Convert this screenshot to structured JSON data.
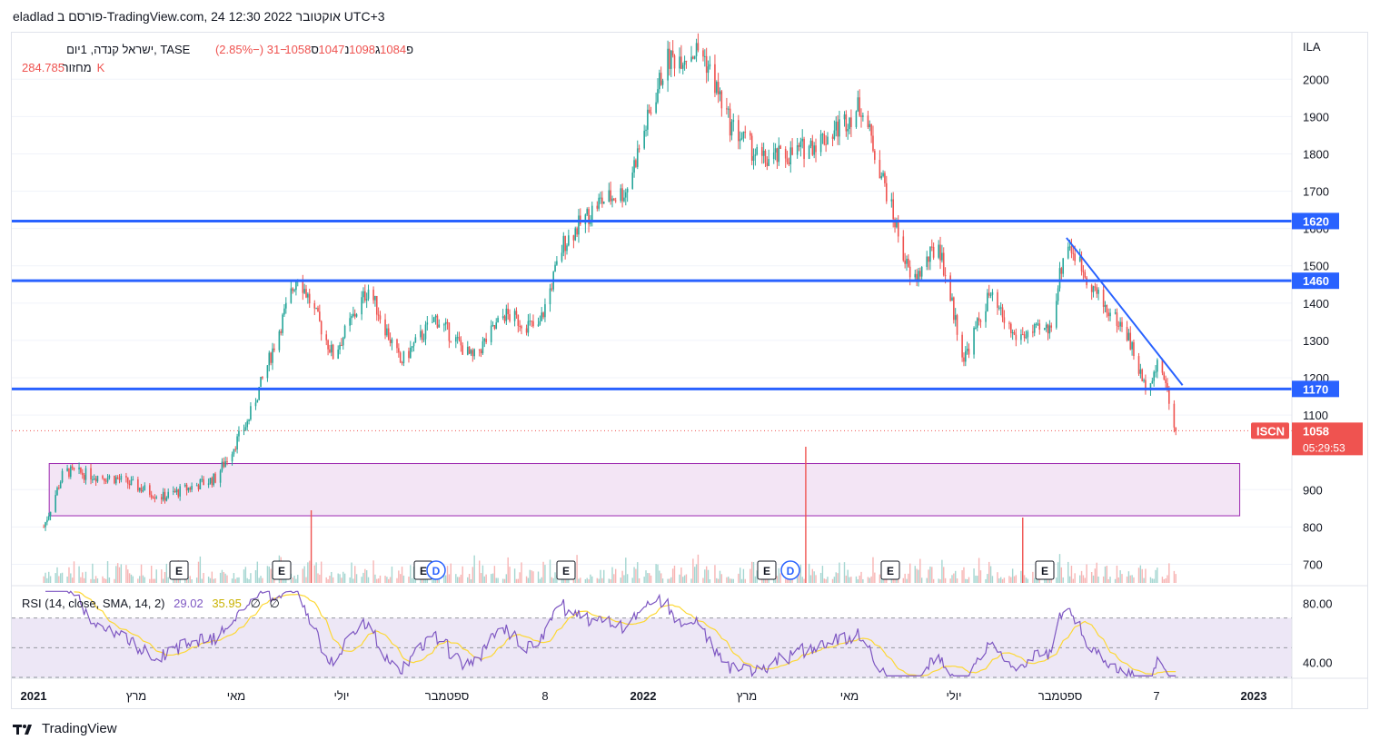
{
  "header": {
    "topline": "eladlad פורסם ב-TradingView.com, 24 אוקטובר 2022 12:30 UTC+3",
    "legend_symbol": "ישראל קנדה, 1יום, TASE",
    "ohlc": [
      {
        "label": "פ",
        "value": "1084"
      },
      {
        "label": "ג",
        "value": "1098"
      },
      {
        "label": "נ",
        "value": "1047"
      },
      {
        "label": "ס",
        "value": "1058"
      }
    ],
    "change": "−31 (−2.85%)",
    "volume_label": "מחזור",
    "volume_value": "284.785K"
  },
  "price_axis": {
    "currency": "ILA",
    "ticks": [
      "2000",
      "1900",
      "1800",
      "1700",
      "1600",
      "1500",
      "1400",
      "1300",
      "1200",
      "1100",
      "900",
      "800",
      "700"
    ]
  },
  "levels": [
    {
      "label": "1620",
      "value": 1620
    },
    {
      "label": "1460",
      "value": 1460
    },
    {
      "label": "1170",
      "value": 1170
    }
  ],
  "last_price": {
    "symbol": "ISCN",
    "value": "1058",
    "countdown": "05:29:53"
  },
  "rsi": {
    "legend": "RSI (14, close, SMA, 14, 2)",
    "value1": "29.02",
    "value2": "35.95",
    "value3": "∅",
    "value4": "∅",
    "ticks": [
      "80.00",
      "40.00"
    ]
  },
  "time_axis": [
    "2021",
    "מרץ",
    "מאי",
    "יולי",
    "ספטמבר",
    "8",
    "2022",
    "מרץ",
    "מאי",
    "יולי",
    "ספטמבר",
    "7",
    "2023"
  ],
  "event_markers": [
    "E",
    "E",
    "E",
    "E",
    "E",
    "E",
    "E",
    "E",
    "D",
    "D"
  ],
  "footer": {
    "brand": "TradingView"
  },
  "colors": {
    "up": "#26a69a",
    "down": "#ef5350",
    "level": "#2962ff",
    "volume_spike": "#ef5350",
    "zone_fill": "#f3e5f5",
    "zone_border": "#9c27b0",
    "rsi_line": "#7e57c2",
    "rsi_ma": "#fdd835",
    "rsi_band": "#ede7f6"
  },
  "chart_data": {
    "type": "candlestick",
    "symbol": "ISCN",
    "interval": "1D",
    "x_start": "2020-12",
    "x_end": "2023-01",
    "ylim": [
      650,
      2120
    ],
    "close_path": [
      {
        "date": "2020-12-20",
        "close": 800
      },
      {
        "date": "2021-01-01",
        "close": 950
      },
      {
        "date": "2021-02-01",
        "close": 930
      },
      {
        "date": "2021-03-01",
        "close": 880
      },
      {
        "date": "2021-04-01",
        "close": 930
      },
      {
        "date": "2021-04-20",
        "close": 1080
      },
      {
        "date": "2021-05-01",
        "close": 1220
      },
      {
        "date": "2021-05-20",
        "close": 1480
      },
      {
        "date": "2021-06-10",
        "close": 1260
      },
      {
        "date": "2021-07-01",
        "close": 1440
      },
      {
        "date": "2021-07-20",
        "close": 1240
      },
      {
        "date": "2021-08-10",
        "close": 1360
      },
      {
        "date": "2021-09-01",
        "close": 1250
      },
      {
        "date": "2021-09-20",
        "close": 1370
      },
      {
        "date": "2021-10-10",
        "close": 1330
      },
      {
        "date": "2021-10-25",
        "close": 1560
      },
      {
        "date": "2021-11-15",
        "close": 1670
      },
      {
        "date": "2021-12-01",
        "close": 1700
      },
      {
        "date": "2021-12-25",
        "close": 2050
      },
      {
        "date": "2022-01-15",
        "close": 2080
      },
      {
        "date": "2022-02-01",
        "close": 1880
      },
      {
        "date": "2022-02-20",
        "close": 1780
      },
      {
        "date": "2022-03-10",
        "close": 1800
      },
      {
        "date": "2022-04-01",
        "close": 1850
      },
      {
        "date": "2022-04-20",
        "close": 1930
      },
      {
        "date": "2022-05-05",
        "close": 1700
      },
      {
        "date": "2022-05-20",
        "close": 1450
      },
      {
        "date": "2022-06-05",
        "close": 1560
      },
      {
        "date": "2022-06-20",
        "close": 1250
      },
      {
        "date": "2022-07-05",
        "close": 1420
      },
      {
        "date": "2022-07-20",
        "close": 1310
      },
      {
        "date": "2022-08-10",
        "close": 1330
      },
      {
        "date": "2022-08-20",
        "close": 1570
      },
      {
        "date": "2022-09-10",
        "close": 1400
      },
      {
        "date": "2022-09-25",
        "close": 1320
      },
      {
        "date": "2022-10-05",
        "close": 1180
      },
      {
        "date": "2022-10-15",
        "close": 1240
      },
      {
        "date": "2022-10-24",
        "close": 1058
      }
    ],
    "horizontal_levels": [
      1620,
      1460,
      1170
    ],
    "trendline": [
      {
        "date": "2022-08-20",
        "price": 1575
      },
      {
        "date": "2022-10-28",
        "price": 1180
      }
    ],
    "demand_zone": {
      "from": "2020-12-20",
      "to": "2022-12-01",
      "low": 830,
      "high": 970
    },
    "rsi_range": [
      30,
      90
    ]
  }
}
